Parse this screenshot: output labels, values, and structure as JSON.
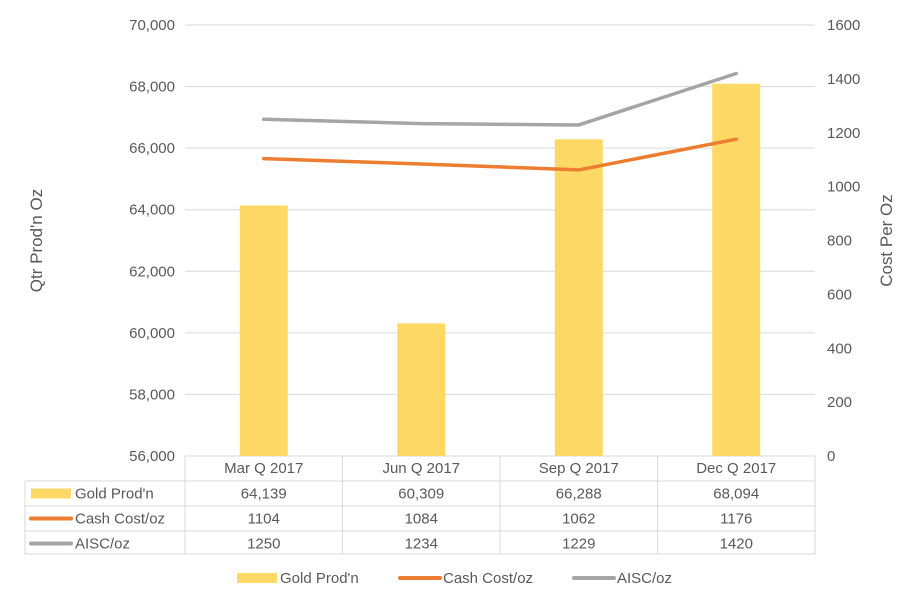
{
  "chart_data": {
    "type": "bar",
    "categories": [
      "Mar Q 2017",
      "Jun Q 2017",
      "Sep Q 2017",
      "Dec Q 2017"
    ],
    "series": [
      {
        "name": "Gold Prod'n",
        "type": "bar",
        "axis": "left",
        "color": "#FFD966",
        "values": [
          64139,
          60309,
          66288,
          68094
        ],
        "labels": [
          "64,139",
          "60,309",
          "66,288",
          "68,094"
        ]
      },
      {
        "name": "Cash Cost/oz",
        "type": "line",
        "axis": "right",
        "color": "#ED7D31",
        "values": [
          1104,
          1084,
          1062,
          1176
        ],
        "labels": [
          "1104",
          "1084",
          "1062",
          "1176"
        ]
      },
      {
        "name": "AISC/oz",
        "type": "line",
        "axis": "right",
        "color": "#A5A5A5",
        "values": [
          1250,
          1234,
          1229,
          1420
        ],
        "labels": [
          "1250",
          "1234",
          "1229",
          "1420"
        ]
      }
    ],
    "ylabel": "Qtr Prod'n Oz",
    "y2label": "Cost Per  Oz",
    "ylim": [
      56000,
      70000
    ],
    "y2lim": [
      0,
      1600
    ],
    "yticks": [
      "56,000",
      "58,000",
      "60,000",
      "62,000",
      "64,000",
      "66,000",
      "68,000",
      "70,000"
    ],
    "y2ticks": [
      "0",
      "200",
      "400",
      "600",
      "800",
      "1000",
      "1200",
      "1400",
      "1600"
    ],
    "grid": true,
    "data_table": true,
    "legend_position": "bottom"
  }
}
